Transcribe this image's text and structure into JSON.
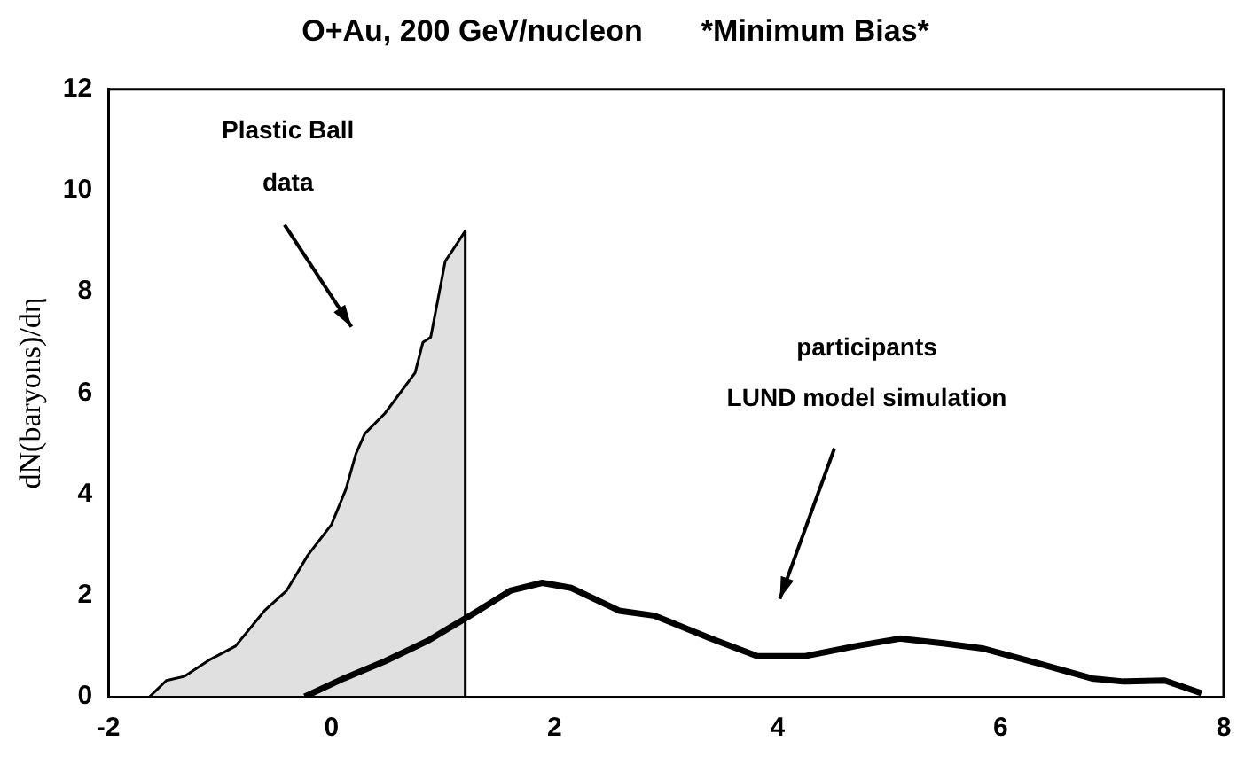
{
  "chart_data": {
    "type": "line",
    "title": "O+Au, 200 GeV/nucleon       *Minimum Bias*",
    "ylabel": "dN(baryons)/dη",
    "xlim": [
      -2,
      8
    ],
    "xticks": [
      -2,
      0,
      2,
      4,
      6,
      8
    ],
    "ylim": [
      0,
      12
    ],
    "yticks": [
      0,
      2,
      4,
      6,
      8,
      10,
      12
    ],
    "grid": false,
    "legend": false,
    "marker": "none",
    "line_style": "solid",
    "series": [
      {
        "type": "area",
        "color": "#000000",
        "x": [
          -1.63,
          -1.48,
          -1.32,
          -1.1,
          -0.86,
          -0.6,
          -0.4,
          -0.21,
          0,
          0.13,
          0.22,
          0.3,
          0.48,
          0.75,
          0.82,
          0.89,
          1.02,
          1.2,
          1.2
        ],
        "values": [
          0,
          0.32,
          0.4,
          0.72,
          1.0,
          1.7,
          2.1,
          2.8,
          3.4,
          4.1,
          4.8,
          5.2,
          5.6,
          6.4,
          7.0,
          7.1,
          8.6,
          9.2,
          0
        ]
      },
      {
        "color": "#000000",
        "x": [
          -0.24,
          0.11,
          0.48,
          0.86,
          1.24,
          1.61,
          1.89,
          2.15,
          2.58,
          2.9,
          3.4,
          3.82,
          4.24,
          4.7,
          5.1,
          5.5,
          5.85,
          6.3,
          6.82,
          7.1,
          7.47,
          7.8
        ],
        "values": [
          0,
          0.36,
          0.7,
          1.1,
          1.6,
          2.1,
          2.25,
          2.15,
          1.7,
          1.6,
          1.15,
          0.8,
          0.8,
          1.0,
          1.15,
          1.05,
          0.95,
          0.68,
          0.36,
          0.3,
          0.32,
          0.07
        ]
      }
    ],
    "annotations": [
      "Plastic Ball\ndata",
      "participants\nLUND model simulation"
    ]
  }
}
